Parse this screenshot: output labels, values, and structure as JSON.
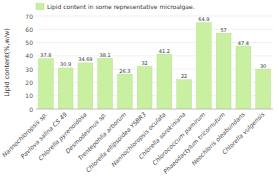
{
  "chart_data": {
    "type": "bar",
    "categories": [
      "Nannochloropsis sp.",
      "Pavlova salina CS 49",
      "Chlorella pyrenoidosa",
      "Desmodesmus sp.",
      "Trentepohlia arborum",
      "Chlorella ellipsoidea YSBR3",
      "Nannochloropsis oculata",
      "Chlorella sorokiniana",
      "Chlorococcum pamirum",
      "Phaeodactylum tricornutum",
      "Neochloris oleabundans",
      "Chlorella vulgensis"
    ],
    "series": [
      {
        "name": "Lipid content in some representative microalgae.",
        "color": "#c8f0a0",
        "values": [
          37.8,
          30.9,
          34.69,
          38.1,
          26.3,
          32,
          41.2,
          22,
          64.9,
          57,
          47.4,
          30
        ]
      }
    ],
    "ylabel": "Lipid content(%,w/w)",
    "ylim": [
      0,
      70
    ],
    "yticks": [
      0,
      10,
      20,
      30,
      40,
      50,
      60,
      70
    ],
    "grid": true,
    "legend": "upper-left",
    "data_labels": true
  }
}
